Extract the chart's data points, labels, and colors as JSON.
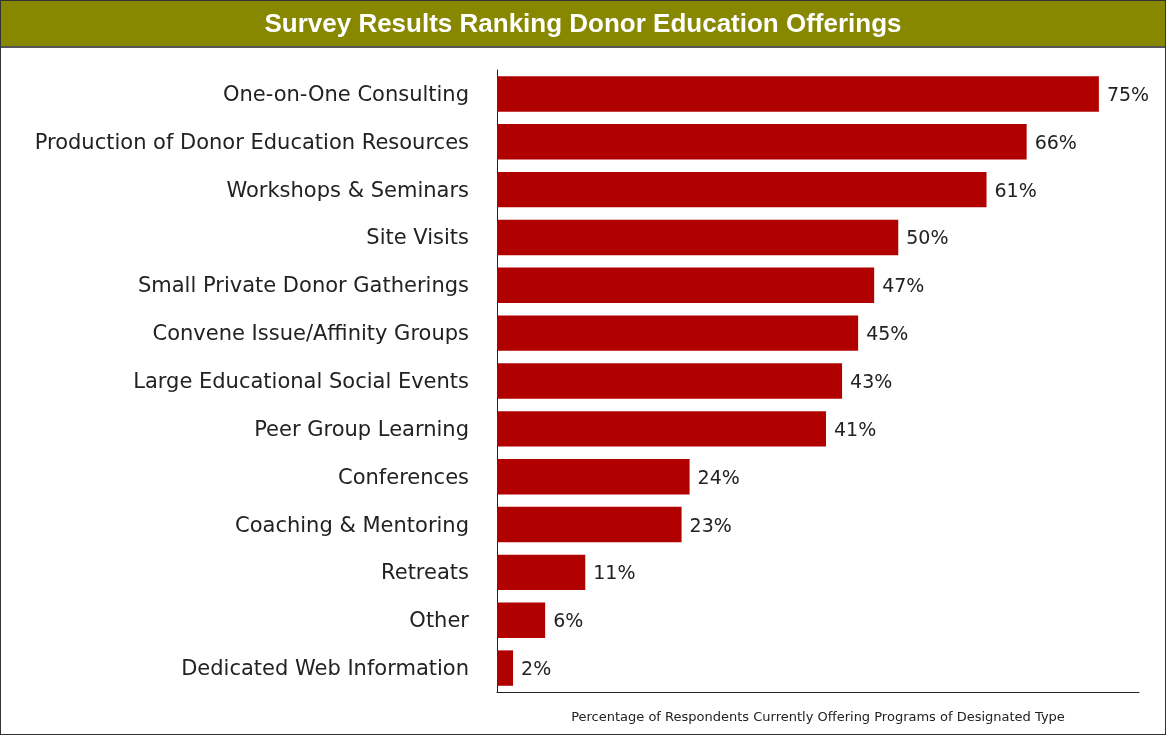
{
  "chart_data": {
    "type": "bar",
    "orientation": "horizontal",
    "title": "Survey Results Ranking Donor Education Offerings",
    "xlabel": "Percentage of Respondents Currently Offering Programs of Designated Type",
    "categories": [
      "One-on-One Consulting",
      "Production of Donor Education Resources",
      "Workshops & Seminars",
      "Site Visits",
      "Small Private Donor Gatherings",
      "Convene Issue/Affinity Groups",
      "Large Educational Social Events",
      "Peer Group Learning",
      "Conferences",
      "Coaching & Mentoring",
      "Retreats",
      "Other",
      "Dedicated Web Information"
    ],
    "values": [
      75,
      66,
      61,
      50,
      47,
      45,
      43,
      41,
      24,
      23,
      11,
      6,
      2
    ],
    "value_labels": [
      "75%",
      "66%",
      "61%",
      "50%",
      "47%",
      "45%",
      "43%",
      "41%",
      "24%",
      "23%",
      "11%",
      "6%",
      "2%"
    ],
    "color": "#b00000",
    "xlim": [
      0,
      80
    ]
  }
}
